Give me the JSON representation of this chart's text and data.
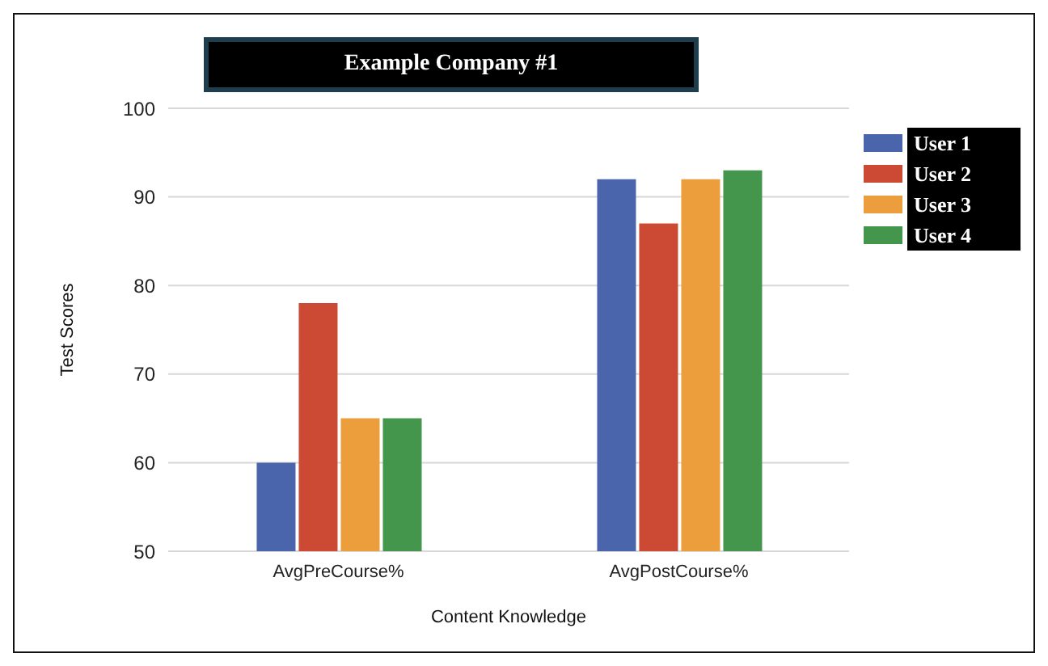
{
  "chart_data": {
    "type": "bar",
    "title": "Example Company #1",
    "xlabel": "Content Knowledge",
    "ylabel": "Test Scores",
    "categories": [
      "AvgPreCourse%",
      "AvgPostCourse%"
    ],
    "series": [
      {
        "name": "User 1",
        "color": "#4a65ab",
        "values": [
          60,
          92
        ]
      },
      {
        "name": "User 2",
        "color": "#cc4a33",
        "values": [
          78,
          87
        ]
      },
      {
        "name": "User 3",
        "color": "#eb9e3b",
        "values": [
          65,
          92
        ]
      },
      {
        "name": "User 4",
        "color": "#43964c",
        "values": [
          65,
          93
        ]
      }
    ],
    "ylim": [
      50,
      100
    ],
    "yticks": [
      50,
      60,
      70,
      80,
      90,
      100
    ],
    "grid": "y",
    "legend": "top right"
  }
}
